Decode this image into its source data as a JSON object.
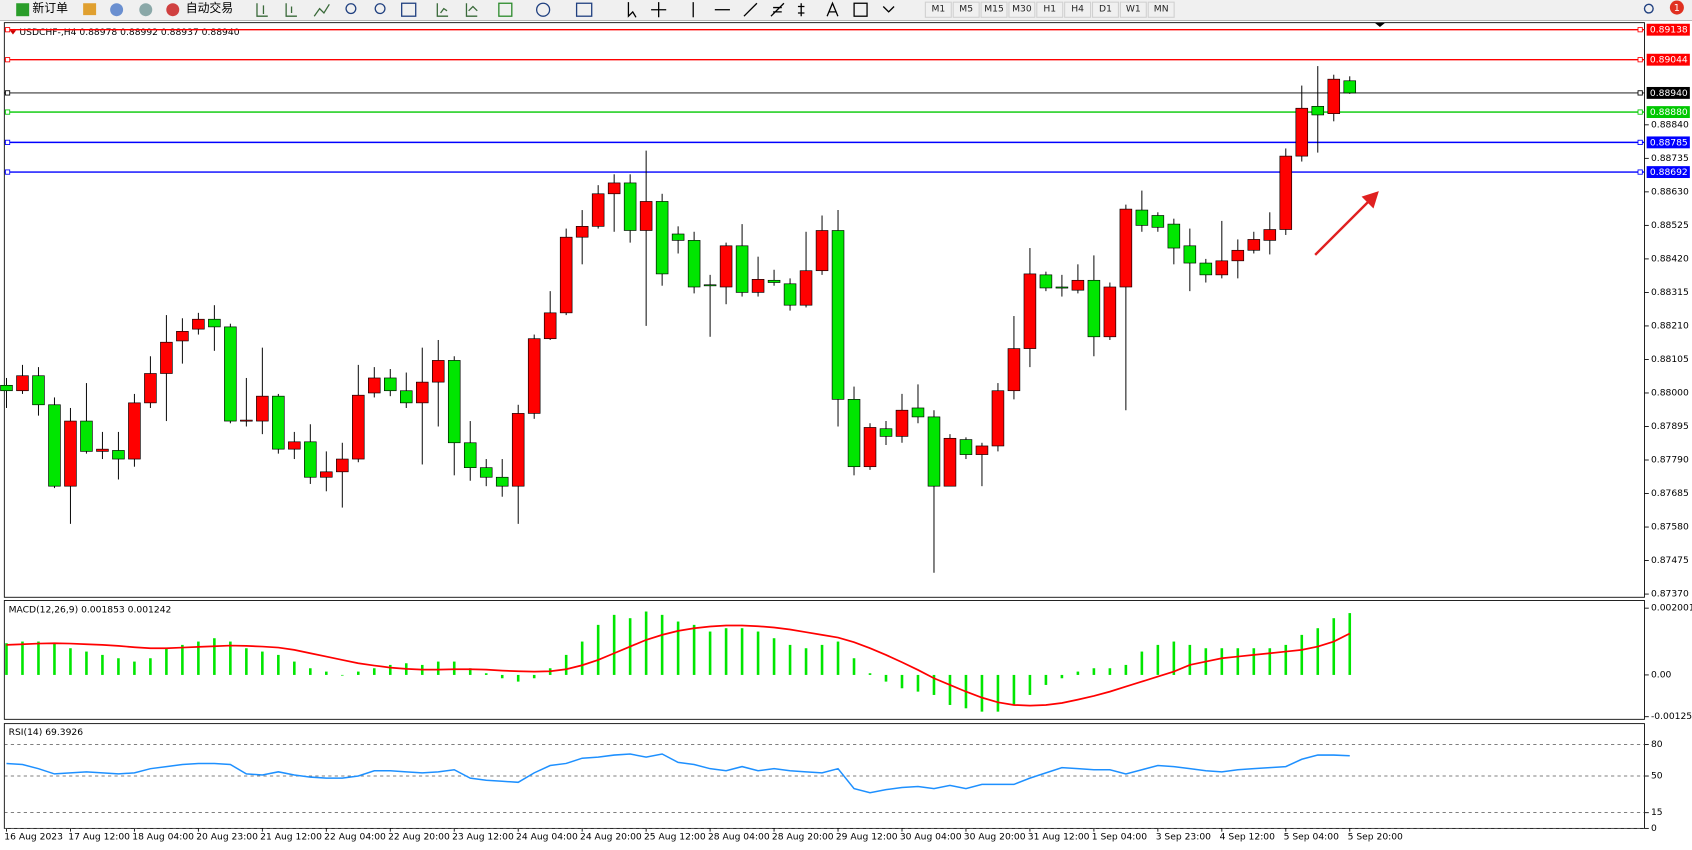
{
  "toolbar": {
    "buttons": [
      "新订单",
      "自动交易"
    ],
    "timeframes": [
      "M1",
      "M5",
      "M15",
      "M30",
      "H1",
      "H4",
      "D1",
      "W1",
      "MN"
    ],
    "badge": "1"
  },
  "chart_data": [
    {
      "type": "candlestick",
      "title": "USDCHF-,H4  0.88978 0.88992 0.88937 0.88940",
      "categories": [
        "16 Aug 2023",
        null,
        null,
        null,
        "17 Aug 12:00",
        null,
        null,
        null,
        "18 Aug 04:00",
        null,
        null,
        null,
        "20 Aug 23:00",
        null,
        null,
        null,
        "21 Aug 12:00",
        null,
        null,
        null,
        "22 Aug 04:00",
        null,
        null,
        null,
        "22 Aug 20:00",
        null,
        null,
        null,
        "23 Aug 12:00",
        null,
        null,
        null,
        "24 Aug 04:00",
        null,
        null,
        null,
        "24 Aug 20:00",
        null,
        null,
        null,
        "25 Aug 12:00",
        null,
        null,
        null,
        "28 Aug 04:00",
        null,
        null,
        null,
        "28 Aug 20:00",
        null,
        null,
        null,
        "29 Aug 12:00",
        null,
        null,
        null,
        "30 Aug 04:00",
        null,
        null,
        null,
        "30 Aug 20:00",
        null,
        null,
        null,
        "31 Aug 12:00",
        null,
        null,
        null,
        "1 Sep 04:00",
        null,
        null,
        null,
        "3 Sep 23:00",
        null,
        null,
        null,
        "4 Sep 12:00",
        null,
        null,
        null,
        "5 Sep 04:00",
        null,
        null,
        null,
        "5 Sep 20:00"
      ],
      "open": [
        0.88024,
        0.88007,
        0.88054,
        0.87963,
        0.87708,
        0.87912,
        0.87817,
        0.8782,
        0.87793,
        0.87969,
        0.88061,
        0.88163,
        0.882,
        0.88231,
        0.88207,
        0.87912,
        0.87912,
        0.8799,
        0.87824,
        0.87847,
        0.87736,
        0.87753,
        0.87793,
        0.88,
        0.88047,
        0.88007,
        0.87969,
        0.88034,
        0.88102,
        0.87844,
        0.87766,
        0.87736,
        0.87708,
        0.87936,
        0.8817,
        0.88251,
        0.88488,
        0.88522,
        0.88624,
        0.88658,
        0.88509,
        0.886,
        0.88498,
        0.88478,
        0.88339,
        0.88332,
        0.88461,
        0.88315,
        0.88353,
        0.88342,
        0.88275,
        0.88383,
        0.88509,
        0.8798,
        0.87769,
        0.87888,
        0.87864,
        0.87953,
        0.87925,
        0.87708,
        0.87854,
        0.87807,
        0.87834,
        0.88007,
        0.88139,
        0.8837,
        0.88332,
        0.88322,
        0.88353,
        0.88176,
        0.88332,
        0.88573,
        0.88556,
        0.88529,
        0.88461,
        0.88407,
        0.8837,
        0.88414,
        0.88447,
        0.88478,
        0.88512,
        0.88742,
        0.88898,
        0.88875,
        0.88978
      ],
      "high": [
        0.88047,
        0.88088,
        0.88081,
        0.87986,
        0.87953,
        0.88031,
        0.87878,
        0.87878,
        0.87997,
        0.88115,
        0.88244,
        0.88234,
        0.88251,
        0.88275,
        0.88217,
        0.88047,
        0.88142,
        0.87997,
        0.87878,
        0.87902,
        0.87817,
        0.87844,
        0.88088,
        0.88081,
        0.88075,
        0.88064,
        0.88142,
        0.88166,
        0.88115,
        0.87912,
        0.87793,
        0.87793,
        0.87963,
        0.88183,
        0.88319,
        0.88515,
        0.88573,
        0.88651,
        0.88685,
        0.88685,
        0.88759,
        0.88624,
        0.88522,
        0.88505,
        0.8837,
        0.88471,
        0.88529,
        0.88427,
        0.88386,
        0.88359,
        0.88505,
        0.88556,
        0.88573,
        0.8802,
        0.87905,
        0.87912,
        0.87997,
        0.88027,
        0.87946,
        0.87871,
        0.87861,
        0.87844,
        0.88031,
        0.88241,
        0.88454,
        0.8838,
        0.8837,
        0.88403,
        0.88431,
        0.88346,
        0.8859,
        0.88634,
        0.88566,
        0.88546,
        0.88515,
        0.8842,
        0.88539,
        0.88481,
        0.88505,
        0.88566,
        0.88766,
        0.88963,
        0.89024,
        0.88997,
        0.88992
      ],
      "low": [
        0.87953,
        0.87997,
        0.87929,
        0.87702,
        0.8759,
        0.8781,
        0.87793,
        0.87729,
        0.87769,
        0.87953,
        0.87912,
        0.88092,
        0.88183,
        0.88132,
        0.87905,
        0.87895,
        0.87871,
        0.8781,
        0.87793,
        0.87715,
        0.87692,
        0.87641,
        0.87783,
        0.87986,
        0.8799,
        0.87953,
        0.87776,
        0.87895,
        0.87742,
        0.87725,
        0.87708,
        0.87675,
        0.8759,
        0.87919,
        0.88166,
        0.88244,
        0.88403,
        0.88515,
        0.88505,
        0.88471,
        0.8821,
        0.88336,
        0.88437,
        0.88312,
        0.88176,
        0.88278,
        0.88302,
        0.88302,
        0.88336,
        0.88258,
        0.88268,
        0.8837,
        0.87895,
        0.87742,
        0.87759,
        0.87837,
        0.87844,
        0.87905,
        0.87437,
        0.87708,
        0.87793,
        0.87708,
        0.87817,
        0.8798,
        0.88081,
        0.88319,
        0.88302,
        0.88312,
        0.88115,
        0.88166,
        0.87946,
        0.88505,
        0.88505,
        0.88403,
        0.88319,
        0.88346,
        0.88359,
        0.88359,
        0.88437,
        0.88434,
        0.88495,
        0.88725,
        0.88753,
        0.88851,
        0.88937
      ],
      "close": [
        0.88007,
        0.88054,
        0.87963,
        0.87708,
        0.87912,
        0.87817,
        0.87824,
        0.87793,
        0.87969,
        0.88061,
        0.88159,
        0.88193,
        0.88231,
        0.88207,
        0.87912,
        0.87915,
        0.8799,
        0.87824,
        0.87847,
        0.87736,
        0.87753,
        0.87793,
        0.87993,
        0.88047,
        0.88007,
        0.87969,
        0.88034,
        0.88102,
        0.87844,
        0.87766,
        0.87736,
        0.87708,
        0.87936,
        0.8817,
        0.88251,
        0.88488,
        0.88522,
        0.88624,
        0.88658,
        0.88509,
        0.886,
        0.88373,
        0.88478,
        0.88332,
        0.88336,
        0.88461,
        0.88315,
        0.88356,
        0.88346,
        0.88275,
        0.88383,
        0.88509,
        0.8798,
        0.87769,
        0.87892,
        0.87864,
        0.87946,
        0.87925,
        0.87708,
        0.87858,
        0.87807,
        0.87834,
        0.88007,
        0.88139,
        0.88373,
        0.88329,
        0.88329,
        0.88353,
        0.88176,
        0.88332,
        0.88576,
        0.88525,
        0.88519,
        0.88454,
        0.88407,
        0.8837,
        0.88414,
        0.88447,
        0.88481,
        0.88512,
        0.88742,
        0.88892,
        0.88871,
        0.88983,
        0.8894
      ],
      "up_color": "#ff0000",
      "down_color": "#00e600",
      "ylim": [
        0.8736,
        0.8916
      ],
      "yticks": [
        {
          "value": 0.8884,
          "label": "0.88840"
        },
        0.88735,
        {
          "value": 0.8863,
          "label": "0.88630"
        },
        0.88525,
        {
          "value": 0.8842,
          "label": "0.88420"
        },
        0.88315,
        {
          "value": 0.8821,
          "label": "0.88210"
        },
        0.88105,
        {
          "value": 0.88,
          "label": "0.88000"
        },
        0.87895,
        {
          "value": 0.8779,
          "label": "0.87790"
        },
        0.87685,
        {
          "value": 0.8758,
          "label": "0.87580"
        },
        0.87475,
        {
          "value": 0.8737,
          "label": "0.87370"
        }
      ],
      "levels": [
        {
          "value": 0.89138,
          "color": "#ff0000"
        },
        {
          "value": 0.89044,
          "color": "#ff0000"
        },
        {
          "value": 0.8894,
          "label": "0.88940",
          "color": "#000000"
        },
        {
          "value": 0.8888,
          "label": "0.88880",
          "color": "#00c800"
        },
        {
          "value": 0.88785,
          "color": "#0000ff"
        },
        {
          "value": 0.88692,
          "color": "#0000ff"
        }
      ]
    },
    {
      "type": "macd",
      "title": "MACD(12,26,9) 0.001853 0.001242",
      "series": [
        {
          "type": "bar",
          "color": "#00e600",
          "values": [
            0.00095,
            0.001,
            0.001,
            0.00095,
            0.0008,
            0.0007,
            0.0006,
            0.0005,
            0.0004,
            0.0005,
            0.0008,
            0.0009,
            0.001,
            0.0011,
            0.001,
            0.0008,
            0.0007,
            0.0006,
            0.0004,
            0.0002,
            0.0001,
            -2e-05,
            0.0001,
            0.0002,
            0.0003,
            0.00035,
            0.0003,
            0.0004,
            0.0004,
            0.0002,
            5e-05,
            -0.0001,
            -0.0002,
            -0.0001,
            0.0002,
            0.0006,
            0.001,
            0.0015,
            0.0018,
            0.0017,
            0.0019,
            0.0018,
            0.0016,
            0.0015,
            0.0013,
            0.0014,
            0.0014,
            0.0013,
            0.0011,
            0.0009,
            0.0008,
            0.0009,
            0.001,
            0.0005,
            5e-05,
            -0.0002,
            -0.0004,
            -0.0005,
            -0.0006,
            -0.0009,
            -0.001,
            -0.0011,
            -0.0011,
            -0.0009,
            -0.0006,
            -0.0003,
            -0.0001,
            0.0001,
            0.0002,
            0.0002,
            0.0003,
            0.0007,
            0.0009,
            0.001,
            0.0009,
            0.0008,
            0.0008,
            0.0008,
            0.0008,
            0.0008,
            0.0009,
            0.0012,
            0.0014,
            0.0017,
            0.001853
          ]
        },
        {
          "type": "line",
          "color": "#ff0000",
          "values": [
            0.0009,
            0.00092,
            0.00094,
            0.00095,
            0.00094,
            0.00092,
            0.0009,
            0.00087,
            0.00083,
            0.0008,
            0.0008,
            0.00082,
            0.00084,
            0.00086,
            0.00088,
            0.00087,
            0.00085,
            0.00082,
            0.00075,
            0.00065,
            0.00055,
            0.00045,
            0.00035,
            0.00028,
            0.00022,
            0.00018,
            0.00016,
            0.00016,
            0.00017,
            0.00017,
            0.00016,
            0.00013,
            0.00011,
            0.0001,
            0.00011,
            0.00017,
            0.00029,
            0.00045,
            0.00065,
            0.00085,
            0.00105,
            0.0012,
            0.00132,
            0.0014,
            0.00145,
            0.00148,
            0.00148,
            0.00146,
            0.00142,
            0.00136,
            0.00128,
            0.0012,
            0.00112,
            0.00098,
            0.0008,
            0.0006,
            0.00038,
            0.00015,
            -0.0001,
            -0.0003,
            -0.0005,
            -0.00068,
            -0.00082,
            -0.0009,
            -0.00092,
            -0.0009,
            -0.00084,
            -0.00074,
            -0.00063,
            -0.0005,
            -0.00035,
            -0.0002,
            -5e-05,
            0.0001,
            0.0003,
            0.0004,
            0.0005,
            0.00055,
            0.0006,
            0.00065,
            0.0007,
            0.00075,
            0.00085,
            0.001,
            0.001242
          ]
        }
      ],
      "ylim": [
        -0.00133,
        0.00223
      ],
      "yticks": [
        0.002001,
        {
          "value": 0,
          "label": "0.00"
        },
        -0.001252
      ]
    },
    {
      "type": "line",
      "title": "RSI(14) 69.3926",
      "color": "#1e90ff",
      "grid": true,
      "values": [
        62,
        61,
        57,
        52,
        53,
        54,
        53,
        52,
        53,
        57,
        59,
        61,
        62,
        62,
        61,
        52,
        51,
        54,
        51,
        49,
        48,
        48,
        50,
        55,
        55,
        54,
        53,
        54,
        56,
        48,
        46,
        45,
        44,
        53,
        60,
        62,
        67,
        68,
        70,
        71,
        68,
        71,
        63,
        61,
        57,
        55,
        59,
        55,
        57,
        55,
        54,
        53,
        57,
        38,
        34,
        37,
        39,
        40,
        38,
        41,
        38,
        42,
        42,
        42,
        48,
        53,
        58,
        57,
        56,
        56,
        52,
        56,
        60,
        59,
        57,
        55,
        54,
        56,
        57,
        58,
        59,
        66,
        70,
        70,
        69.3926
      ],
      "ylim": [
        0,
        100
      ],
      "yticks": [
        80,
        50,
        15,
        0
      ]
    }
  ]
}
